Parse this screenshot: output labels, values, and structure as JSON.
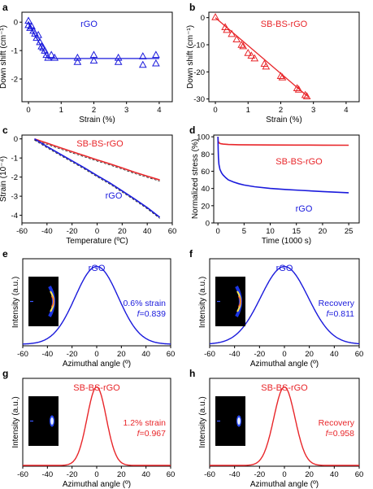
{
  "colors": {
    "blue": "#1a1adc",
    "red": "#e8262a",
    "axis": "#000000"
  },
  "chart_data": [
    {
      "panel": "a",
      "type": "scatter",
      "title": "rGO",
      "title_color": "blue",
      "xlabel": "Strain (%)",
      "ylabel": "Down shift (cm⁻¹)",
      "xlim": [
        -0.2,
        4.4
      ],
      "ylim": [
        -2.8,
        0.35
      ],
      "xticks": [
        0,
        1,
        2,
        3,
        4
      ],
      "yticks": [
        0,
        -1,
        -2
      ],
      "marker": "open-triangle",
      "color": "blue",
      "points": [
        [
          0,
          0.05
        ],
        [
          0,
          -0.1
        ],
        [
          0.05,
          -0.2
        ],
        [
          0.1,
          -0.15
        ],
        [
          0.15,
          -0.3
        ],
        [
          0.2,
          -0.4
        ],
        [
          0.25,
          -0.55
        ],
        [
          0.3,
          -0.45
        ],
        [
          0.35,
          -0.7
        ],
        [
          0.4,
          -0.85
        ],
        [
          0.45,
          -0.9
        ],
        [
          0.5,
          -1.0
        ],
        [
          0.55,
          -1.15
        ],
        [
          0.6,
          -1.25
        ],
        [
          0.7,
          -1.15
        ],
        [
          0.8,
          -1.25
        ],
        [
          1.5,
          -1.25
        ],
        [
          1.5,
          -1.4
        ],
        [
          2.0,
          -1.15
        ],
        [
          2.0,
          -1.35
        ],
        [
          2.75,
          -1.25
        ],
        [
          2.75,
          -1.4
        ],
        [
          3.5,
          -1.2
        ],
        [
          3.5,
          -1.5
        ],
        [
          3.9,
          -1.15
        ],
        [
          3.9,
          -1.45
        ]
      ],
      "fit": [
        [
          0,
          -0.05
        ],
        [
          0.6,
          -1.28
        ],
        [
          4.0,
          -1.28
        ]
      ]
    },
    {
      "panel": "b",
      "type": "scatter",
      "title": "SB-BS-rGO",
      "title_color": "red",
      "xlabel": "Strain (%)",
      "ylabel": "Down shift (cm⁻¹)",
      "xlim": [
        -0.2,
        4.4
      ],
      "ylim": [
        -31,
        2
      ],
      "xticks": [
        0,
        1,
        2,
        3,
        4
      ],
      "yticks": [
        0,
        -10,
        -20,
        -30
      ],
      "marker": "open-triangle",
      "color": "red",
      "points": [
        [
          0,
          0.2
        ],
        [
          0.3,
          -3.5
        ],
        [
          0.35,
          -4.5
        ],
        [
          0.5,
          -6
        ],
        [
          0.65,
          -8
        ],
        [
          0.8,
          -10
        ],
        [
          0.85,
          -10.5
        ],
        [
          1.0,
          -13
        ],
        [
          1.1,
          -14
        ],
        [
          1.2,
          -15
        ],
        [
          1.5,
          -17
        ],
        [
          1.55,
          -18
        ],
        [
          2.0,
          -21.5
        ],
        [
          2.05,
          -22
        ],
        [
          2.5,
          -26
        ],
        [
          2.55,
          -26.5
        ],
        [
          2.75,
          -28.5
        ],
        [
          2.8,
          -29
        ]
      ],
      "fit": [
        [
          0,
          0
        ],
        [
          2.8,
          -28.8
        ]
      ]
    },
    {
      "panel": "c",
      "type": "line",
      "xlabel": "Temperature (ºC)",
      "ylabel": "Strain (10⁻⁴)",
      "xlim": [
        -60,
        60
      ],
      "ylim": [
        -4.4,
        0.2
      ],
      "xticks": [
        -60,
        -40,
        -20,
        0,
        20,
        40,
        60
      ],
      "yticks": [
        0,
        -1,
        -2,
        -3,
        -4
      ],
      "series": [
        {
          "name": "SB-BS-rGO",
          "color": "red",
          "x": [
            -50,
            -40,
            -30,
            -20,
            -10,
            0,
            10,
            20,
            30,
            40,
            50
          ],
          "y": [
            0,
            -0.22,
            -0.45,
            -0.67,
            -0.88,
            -1.1,
            -1.3,
            -1.52,
            -1.75,
            -1.95,
            -2.15
          ]
        },
        {
          "name": "rGO",
          "color": "blue",
          "x": [
            -50,
            -40,
            -30,
            -20,
            -10,
            0,
            10,
            20,
            30,
            40,
            50
          ],
          "y": [
            0,
            -0.4,
            -0.78,
            -1.15,
            -1.52,
            -1.92,
            -2.3,
            -2.72,
            -3.15,
            -3.6,
            -4.1
          ]
        }
      ]
    },
    {
      "panel": "d",
      "type": "line",
      "xlabel": "Time (1000 s)",
      "ylabel": "Normalized stress (%)",
      "xlim": [
        -0.8,
        27
      ],
      "ylim": [
        0,
        102
      ],
      "xticks": [
        0,
        5,
        10,
        15,
        20,
        25
      ],
      "yticks": [
        0,
        20,
        40,
        60,
        80,
        100
      ],
      "series": [
        {
          "name": "SB-BS-rGO",
          "color": "red",
          "x": [
            0,
            0.05,
            0.2,
            0.5,
            1,
            2,
            4,
            7,
            10,
            15,
            20,
            25
          ],
          "y": [
            100,
            95,
            93,
            92,
            91.5,
            91,
            90.8,
            90.6,
            90.5,
            90.4,
            90.3,
            90.2
          ]
        },
        {
          "name": "rGO",
          "color": "blue",
          "x": [
            0,
            0.05,
            0.1,
            0.2,
            0.4,
            0.7,
            1,
            1.5,
            2,
            3,
            4,
            5,
            7,
            10,
            13,
            16,
            20,
            25
          ],
          "y": [
            100,
            85,
            76,
            68,
            62,
            58,
            55.5,
            52.5,
            50,
            47.5,
            45.5,
            44,
            42,
            40,
            38.8,
            37.8,
            36.5,
            35
          ]
        }
      ]
    },
    {
      "panel": "e",
      "type": "line",
      "title": "rGO",
      "title_color": "blue",
      "xlabel": "Azimuthal angle (º)",
      "ylabel": "Intensity (a.u.)",
      "xlim": [
        -60,
        60
      ],
      "xticks": [
        -60,
        -40,
        -20,
        0,
        20,
        40,
        60
      ],
      "annotation": "0.6% strain",
      "f_value": "=0.839",
      "color": "blue",
      "curve": {
        "center": 0,
        "sigma": 17.5,
        "peak": 1.0,
        "baseline": 0.02
      },
      "inset": "wide"
    },
    {
      "panel": "f",
      "type": "line",
      "title": "rGO",
      "title_color": "blue",
      "xlabel": "Azimuthal angle (º)",
      "ylabel": "Intensity (a.u.)",
      "xlim": [
        -60,
        60
      ],
      "xticks": [
        -60,
        -40,
        -20,
        0,
        20,
        40,
        60
      ],
      "annotation": "Recovery",
      "f_value": "=0.811",
      "color": "blue",
      "curve": {
        "center": 0,
        "sigma": 19,
        "peak": 1.0,
        "baseline": 0.02
      },
      "inset": "wide"
    },
    {
      "panel": "g",
      "type": "line",
      "title": "SB-BS-rGO",
      "title_color": "red",
      "xlabel": "Azimuthal angle (º)",
      "ylabel": "Intensity (a.u.)",
      "xlim": [
        -60,
        60
      ],
      "xticks": [
        -60,
        -40,
        -20,
        0,
        20,
        40,
        60
      ],
      "annotation": "1.2% strain",
      "f_value": "=0.967",
      "color": "red",
      "curve": {
        "center": 0,
        "sigma": 7.8,
        "peak": 1.0,
        "baseline": 0.01
      },
      "inset": "narrow"
    },
    {
      "panel": "h",
      "type": "line",
      "title": "SB-BS-rGO",
      "title_color": "red",
      "xlabel": "Azimuthal angle (º)",
      "ylabel": "Intensity (a.u.)",
      "xlim": [
        -60,
        60
      ],
      "xticks": [
        -60,
        -40,
        -20,
        0,
        20,
        40,
        60
      ],
      "annotation": "Recovery",
      "f_value": "=0.958",
      "color": "red",
      "curve": {
        "center": 0,
        "sigma": 8.5,
        "peak": 1.0,
        "baseline": 0.01
      },
      "inset": "narrow"
    }
  ]
}
